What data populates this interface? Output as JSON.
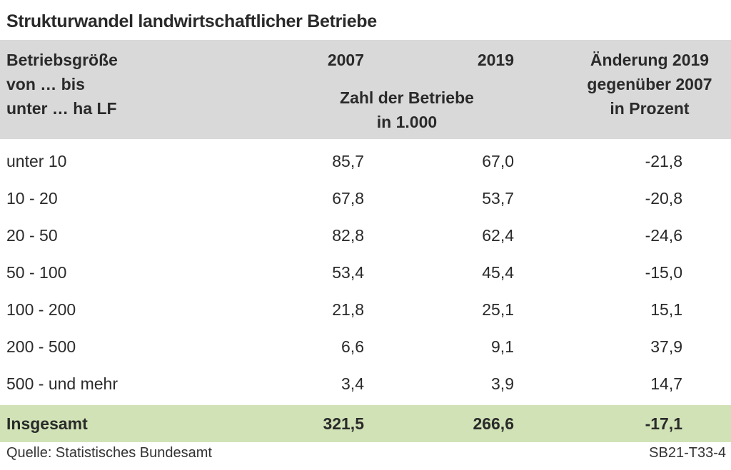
{
  "title": "Strukturwandel landwirtschaftlicher Betriebe",
  "colors": {
    "header_bg": "#d9d9d9",
    "total_bg": "#d1e3b6",
    "text": "#2a2a2a"
  },
  "header": {
    "col0": "Betriebsgröße\nvon … bis\nunter … ha LF",
    "y2007": "2007",
    "y2019": "2019",
    "unit": "Zahl der Betriebe\nin 1.000",
    "change": "Änderung 2019\ngegenüber 2007\nin Prozent"
  },
  "chart_data": {
    "type": "table",
    "title": "Strukturwandel landwirtschaftlicher Betriebe",
    "columns": [
      "Betriebsgröße von … bis unter … ha LF",
      "2007",
      "2019",
      "Änderung 2019 gegenüber 2007 in Prozent"
    ],
    "unit": "Zahl der Betriebe in 1.000",
    "rows": [
      {
        "label": "unter 10",
        "v2007": "85,7",
        "v2019": "67,0",
        "change": "-21,8"
      },
      {
        "label": "10 - 20",
        "v2007": "67,8",
        "v2019": "53,7",
        "change": "-20,8"
      },
      {
        "label": "20 - 50",
        "v2007": "82,8",
        "v2019": "62,4",
        "change": "-24,6"
      },
      {
        "label": "50 - 100",
        "v2007": "53,4",
        "v2019": "45,4",
        "change": "-15,0"
      },
      {
        "label": "100 - 200",
        "v2007": "21,8",
        "v2019": "25,1",
        "change": "15,1"
      },
      {
        "label": "200 - 500",
        "v2007": "6,6",
        "v2019": "9,1",
        "change": "37,9"
      },
      {
        "label": "500 - und mehr",
        "v2007": "3,4",
        "v2019": "3,9",
        "change": "14,7"
      }
    ],
    "total": {
      "label": "Insgesamt",
      "v2007": "321,5",
      "v2019": "266,6",
      "change": "-17,1"
    }
  },
  "footer": {
    "source": "Quelle: Statistisches Bundesamt",
    "code": "SB21-T33-4"
  }
}
